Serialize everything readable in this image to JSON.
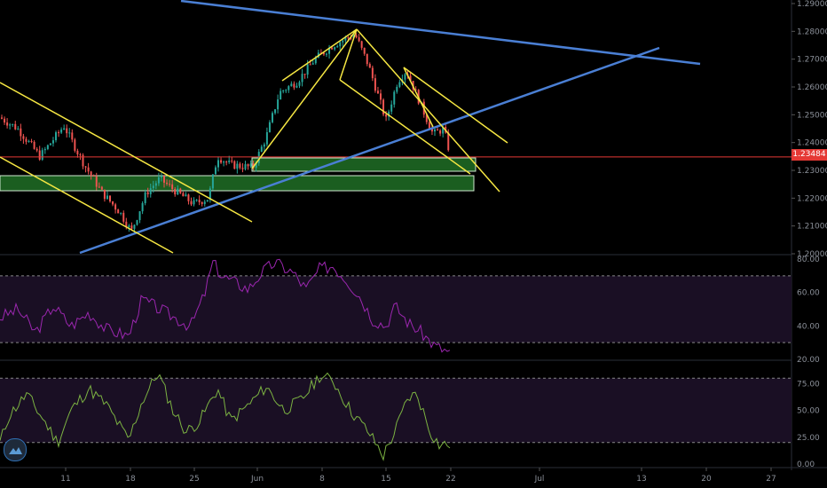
{
  "chart_data": {
    "type": "candlestick",
    "panels": [
      {
        "name": "price",
        "y_ticks": [
          "1.29000",
          "1.28000",
          "1.27000",
          "1.26000",
          "1.25000",
          "1.24000",
          "1.23000",
          "1.22000",
          "1.21000",
          "1.20000"
        ],
        "ylim": [
          1.2,
          1.29
        ],
        "last_price": "1.23484",
        "last_price_value": 1.23484
      },
      {
        "name": "rsi",
        "y_ticks": [
          "80.00",
          "60.00",
          "40.00",
          "20.00"
        ],
        "ylim": [
          20,
          80
        ],
        "band": [
          30,
          70
        ]
      },
      {
        "name": "stochastic",
        "y_ticks": [
          "75.00",
          "50.00",
          "25.00",
          "0.00"
        ],
        "ylim": [
          0,
          100
        ],
        "band": [
          20,
          80
        ]
      }
    ],
    "x_ticks": [
      "11",
      "18",
      "25",
      "Jun",
      "8",
      "15",
      "22",
      "Jul",
      "13",
      "20",
      "27"
    ],
    "colors": {
      "background": "#000000",
      "up": "#26a69a",
      "down": "#ef5350",
      "trendline_blue": "#4a7fd4",
      "channel_yellow": "#f5e642",
      "zone_green": "#1b5e20",
      "rsi_line": "#9c27b0",
      "stoch_line": "#7cb342",
      "price_line": "#e53935"
    }
  }
}
